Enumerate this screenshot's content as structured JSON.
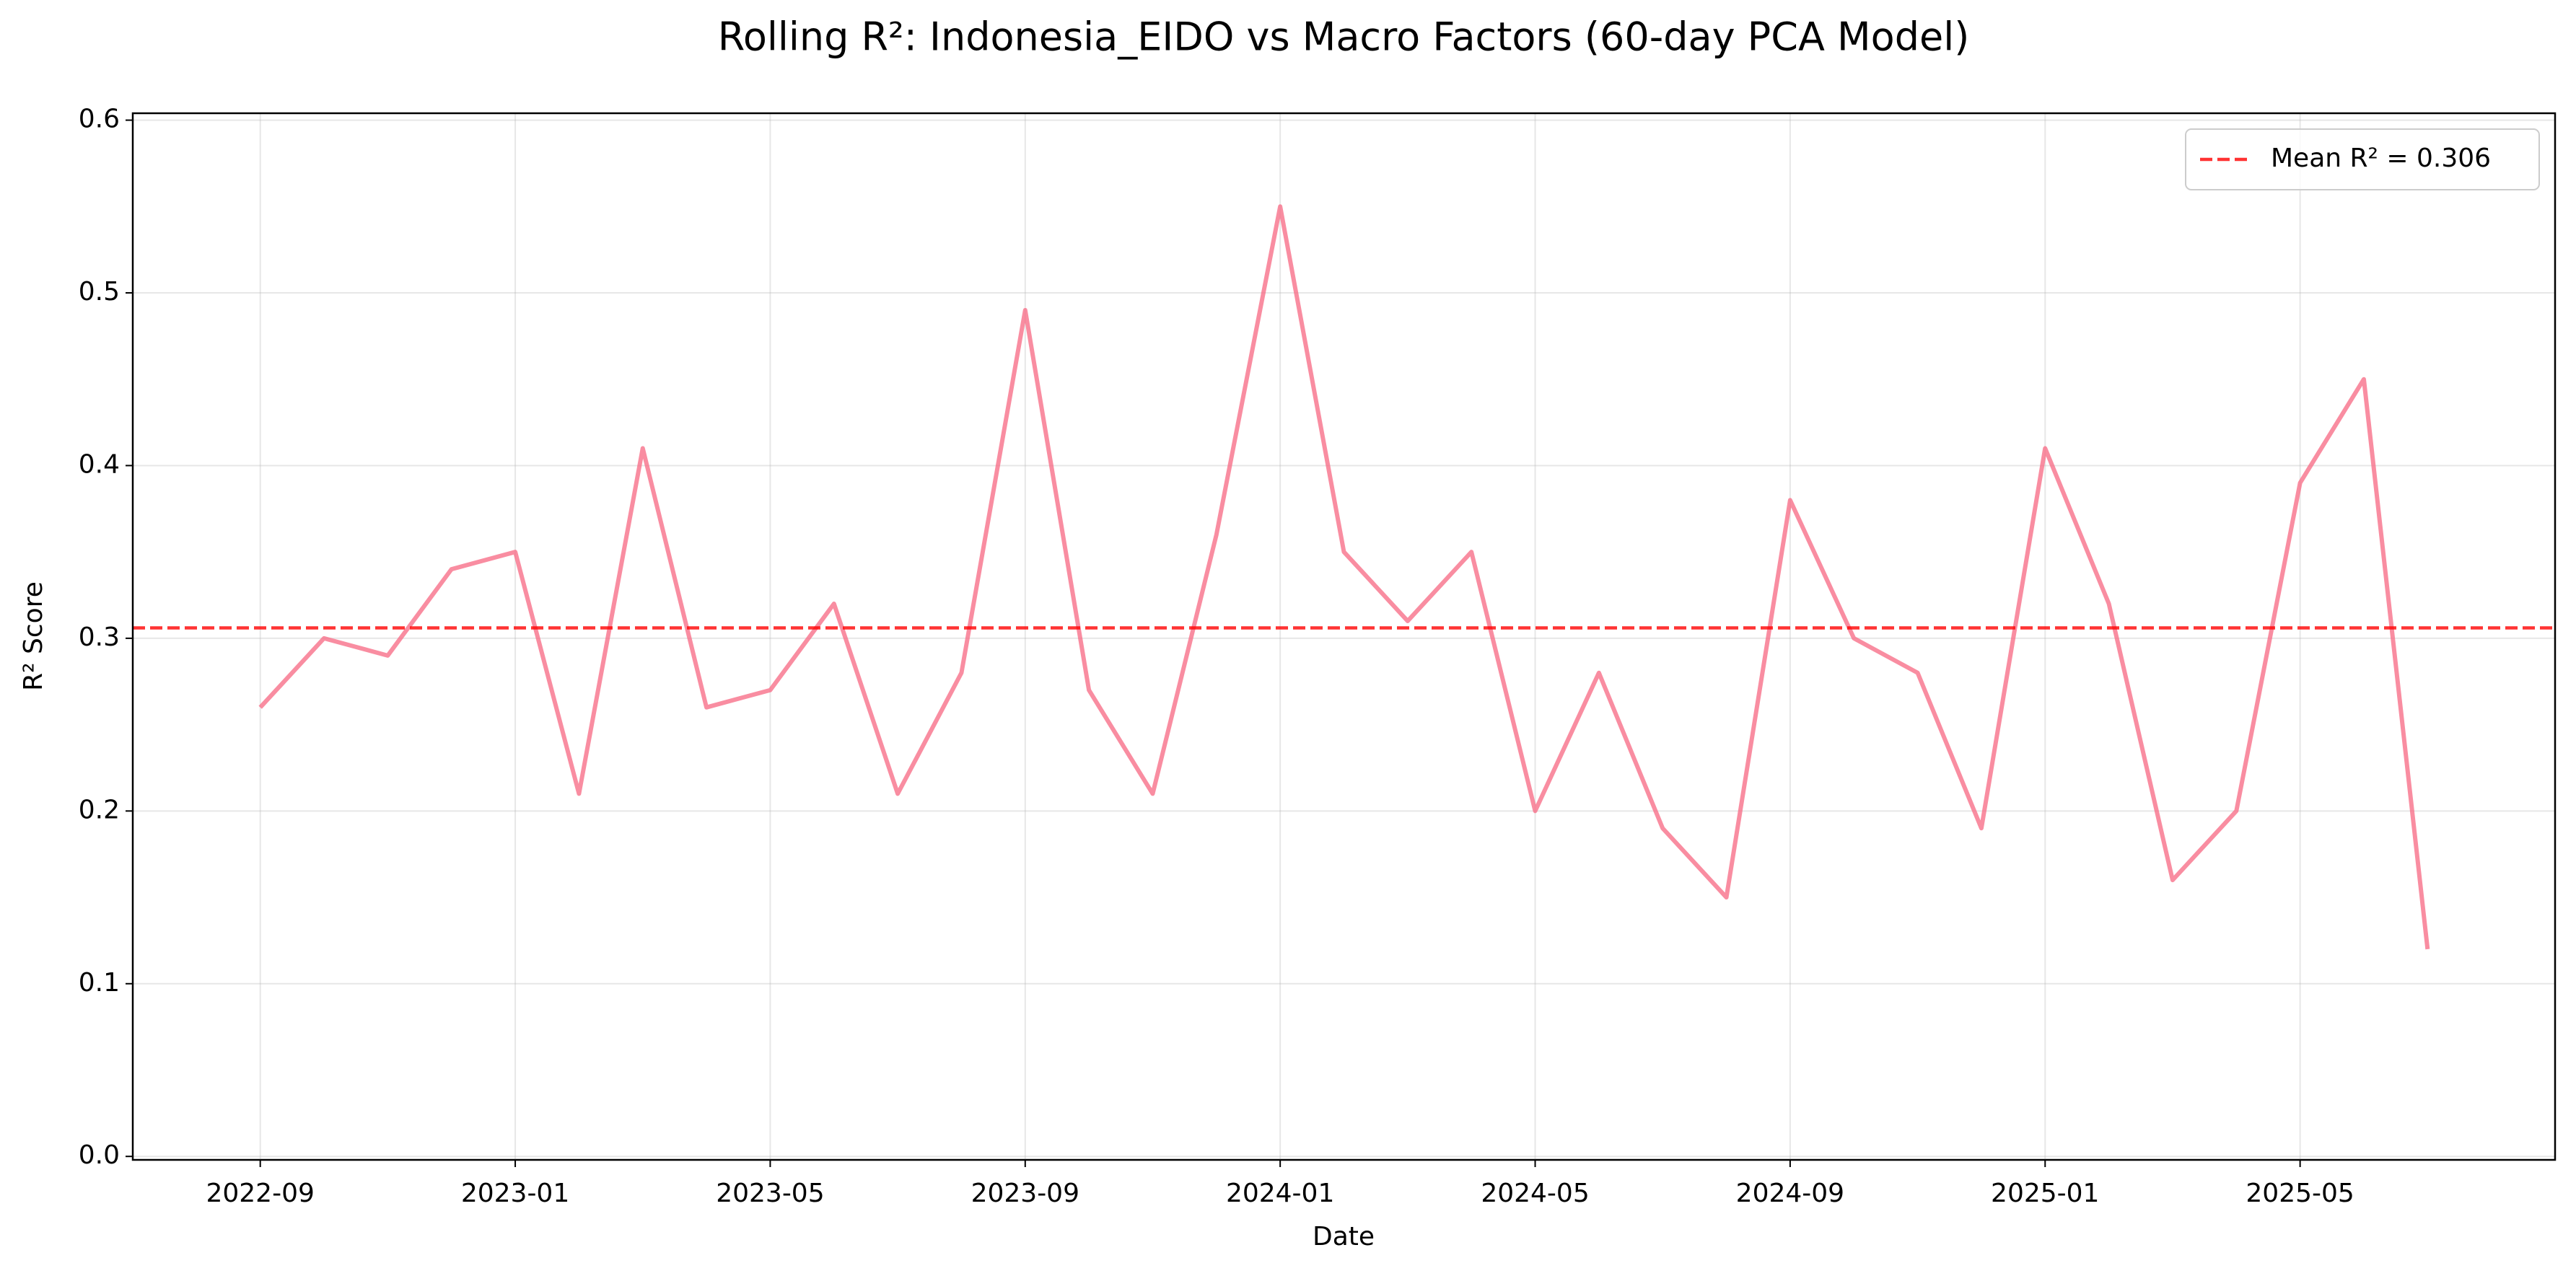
{
  "chart_data": {
    "type": "line",
    "title": "Rolling R²: Indonesia_EIDO vs Macro Factors (60-day PCA Model)",
    "x_label": "Date",
    "y_label": "R² Score",
    "x": [
      "2022-09",
      "2022-10",
      "2022-11",
      "2022-12",
      "2023-01",
      "2023-02",
      "2023-03",
      "2023-04",
      "2023-05",
      "2023-06",
      "2023-07",
      "2023-08",
      "2023-09",
      "2023-10",
      "2023-11",
      "2023-12",
      "2024-01",
      "2024-02",
      "2024-03",
      "2024-04",
      "2024-05",
      "2024-06",
      "2024-07",
      "2024-08",
      "2024-09",
      "2024-10",
      "2024-11",
      "2024-12",
      "2025-01",
      "2025-02",
      "2025-03",
      "2025-04",
      "2025-05",
      "2025-06",
      "2025-07"
    ],
    "series": [
      {
        "color": "#f77189",
        "values": [
          0.26,
          0.3,
          0.29,
          0.34,
          0.35,
          0.21,
          0.41,
          0.26,
          0.27,
          0.32,
          0.21,
          0.28,
          0.49,
          0.27,
          0.21,
          0.36,
          0.55,
          0.35,
          0.31,
          0.35,
          0.2,
          0.28,
          0.19,
          0.15,
          0.38,
          0.3,
          0.28,
          0.19,
          0.41,
          0.32,
          0.16,
          0.2,
          0.39,
          0.45,
          0.12
        ]
      }
    ],
    "reference_line": {
      "value": 0.306,
      "label": "Mean R² = 0.306",
      "color": "#ff0000"
    },
    "xlim": [
      "2022-07",
      "2025-09"
    ],
    "xticks": [
      "2022-09",
      "2023-01",
      "2023-05",
      "2023-09",
      "2024-01",
      "2024-05",
      "2024-09",
      "2025-01",
      "2025-05"
    ],
    "ylim": [
      -0.002,
      0.604
    ],
    "yticks": [
      {
        "value": 0,
        "label": "0.0"
      },
      0.1,
      0.2,
      0.3,
      0.4,
      0.5,
      0.6
    ],
    "grid": true,
    "legend": "upper right"
  }
}
